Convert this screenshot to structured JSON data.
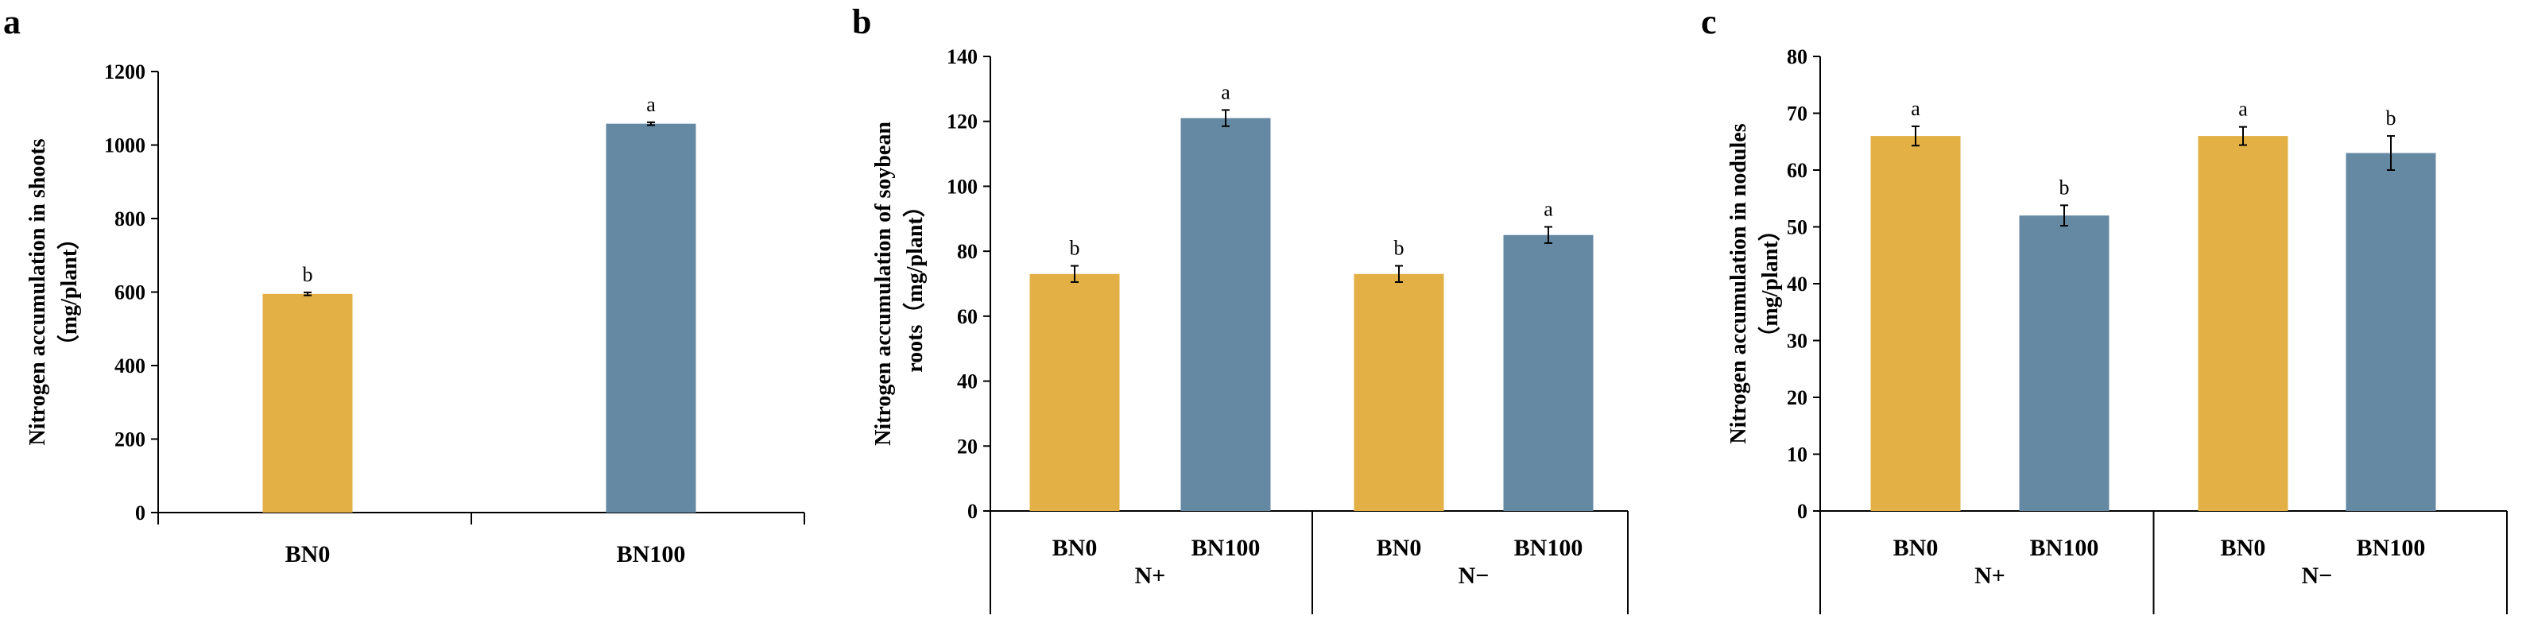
{
  "colors": {
    "orange": "#E2B045",
    "blue": "#6689A3"
  },
  "chart_data": [
    {
      "type": "bar",
      "panel": "a",
      "ylabel_lines": [
        "Nitrogen accumulation in shoots",
        "（mg/plant）"
      ],
      "ylim": [
        0,
        1200
      ],
      "yticks": [
        0,
        200,
        400,
        600,
        800,
        1000,
        1200
      ],
      "categories": [
        "BN0",
        "BN100"
      ],
      "groups": [],
      "values": [
        595,
        1058
      ],
      "errors": [
        4,
        4
      ],
      "letters": [
        "b",
        "a"
      ],
      "bar_colors": [
        "orange",
        "blue"
      ]
    },
    {
      "type": "bar",
      "panel": "b",
      "ylabel_lines": [
        "Nitrogen accumulation of soybean",
        "roots（mg/plant）"
      ],
      "ylim": [
        0,
        140
      ],
      "yticks": [
        0,
        20,
        40,
        60,
        80,
        100,
        120,
        140
      ],
      "categories": [
        "BN0",
        "BN100",
        "BN0",
        "BN100"
      ],
      "groups": [
        "N+",
        "N−"
      ],
      "values": [
        73,
        121,
        73,
        85
      ],
      "errors": [
        2.5,
        2.5,
        2.5,
        2.5
      ],
      "letters": [
        "b",
        "a",
        "b",
        "a"
      ],
      "bar_colors": [
        "orange",
        "blue",
        "orange",
        "blue"
      ]
    },
    {
      "type": "bar",
      "panel": "c",
      "ylabel_lines": [
        "Nitrogen accumulation in nodules",
        "（mg/plant）"
      ],
      "ylim": [
        0,
        80
      ],
      "yticks": [
        0,
        10,
        20,
        30,
        40,
        50,
        60,
        70,
        80
      ],
      "categories": [
        "BN0",
        "BN100",
        "BN0",
        "BN100"
      ],
      "groups": [
        "N+",
        "N−"
      ],
      "values": [
        66,
        52,
        66,
        63
      ],
      "errors": [
        1.7,
        1.8,
        1.6,
        3
      ],
      "letters": [
        "a",
        "b",
        "a",
        "b"
      ],
      "bar_colors": [
        "orange",
        "blue",
        "orange",
        "blue"
      ]
    }
  ]
}
